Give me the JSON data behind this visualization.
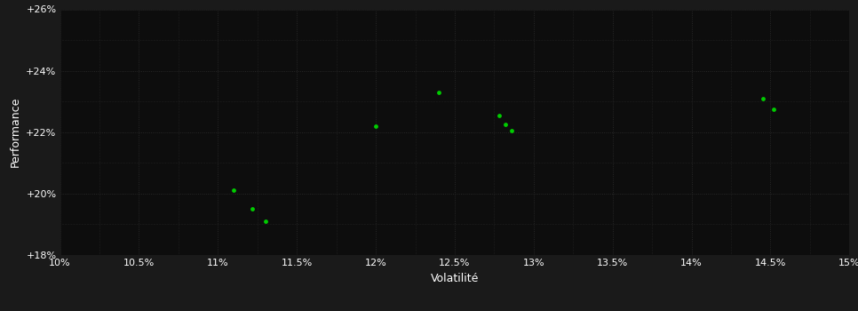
{
  "points_x": [
    11.1,
    11.22,
    11.3,
    12.0,
    12.4,
    12.78,
    12.82,
    12.86,
    14.45,
    14.52
  ],
  "points_y": [
    20.1,
    19.5,
    19.1,
    22.2,
    23.3,
    22.55,
    22.25,
    22.05,
    23.1,
    22.75
  ],
  "x_label": "Volatilité",
  "y_label": "Performance",
  "x_min": 10.0,
  "x_max": 15.0,
  "y_min": 18.0,
  "y_max": 26.0,
  "x_ticks": [
    10.0,
    10.5,
    11.0,
    11.5,
    12.0,
    12.5,
    13.0,
    13.5,
    14.0,
    14.5,
    15.0
  ],
  "y_ticks": [
    18.0,
    20.0,
    22.0,
    24.0,
    26.0
  ],
  "background_color": "#1a1a1a",
  "plot_bg_color": "#0d0d0d",
  "grid_color": "#2e2e2e",
  "point_color": "#00cc00",
  "text_color": "#ffffff",
  "tick_fontsize": 8,
  "label_fontsize": 9
}
